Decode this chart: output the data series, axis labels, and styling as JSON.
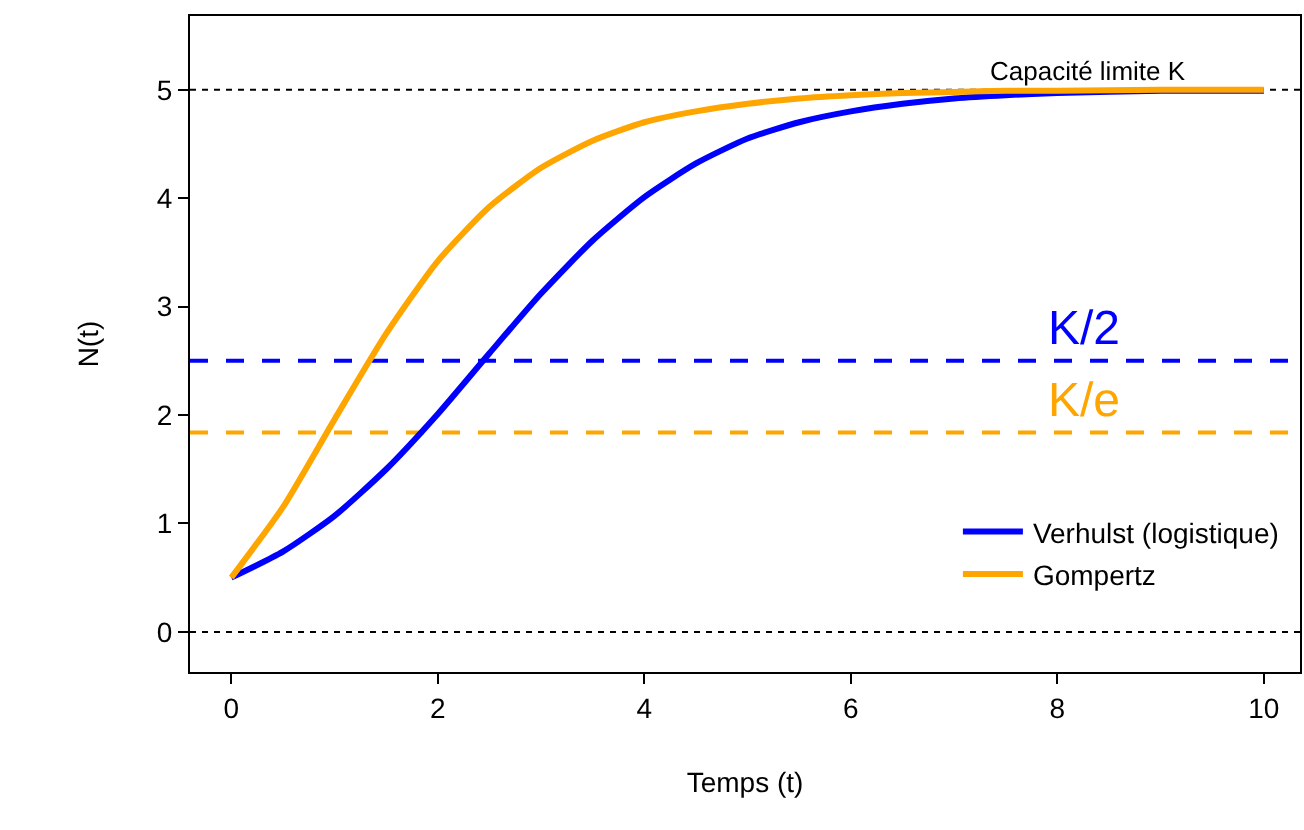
{
  "chart_data": {
    "type": "line",
    "xlabel": "Temps (t)",
    "ylabel": "N(t)",
    "x": [
      0,
      0.5,
      1,
      1.5,
      2,
      2.5,
      3,
      3.5,
      4,
      4.5,
      5,
      5.5,
      6,
      6.5,
      7,
      7.5,
      8,
      9,
      10
    ],
    "series": [
      {
        "name": "Verhulst (logistique)",
        "color": "#0000ff",
        "values": [
          0.5,
          0.74,
          1.07,
          1.5,
          2.01,
          2.57,
          3.12,
          3.61,
          4.01,
          4.32,
          4.55,
          4.7,
          4.8,
          4.87,
          4.92,
          4.95,
          4.97,
          4.99,
          4.99
        ]
      },
      {
        "name": "Gompertz",
        "color": "#ffa500",
        "values": [
          0.5,
          1.15,
          1.96,
          2.75,
          3.42,
          3.92,
          4.28,
          4.53,
          4.7,
          4.8,
          4.87,
          4.92,
          4.95,
          4.97,
          4.98,
          4.99,
          4.99,
          5.0,
          5.0
        ]
      }
    ],
    "xlim": [
      -0.4,
      10.35
    ],
    "ylim": [
      -0.37,
      5.68
    ],
    "xticks": [
      0,
      2,
      4,
      6,
      8,
      10
    ],
    "yticks": [
      0,
      1,
      2,
      3,
      4,
      5
    ],
    "ref_lines": [
      {
        "axis": "y",
        "value": 5,
        "label": "Capacité limite K",
        "color": "#000000",
        "line_style": "dotted"
      },
      {
        "axis": "y",
        "value": 0,
        "label": null,
        "color": "#000000",
        "line_style": "dotted"
      },
      {
        "axis": "y",
        "value": 2.5,
        "label": "K/2",
        "color": "#0000ff",
        "line_style": "dashed"
      },
      {
        "axis": "y",
        "value": 1.84,
        "label": "K/e",
        "color": "#ffa500",
        "line_style": "dashed"
      }
    ],
    "grid": false,
    "legend": "bottom right",
    "marker": "none",
    "line_style": "solid"
  }
}
